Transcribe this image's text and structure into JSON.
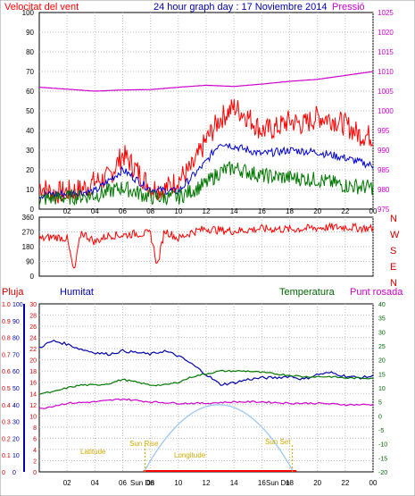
{
  "title": "24 hour graph day : 17 Noviembre 2014",
  "colors": {
    "wind": "#ff0000",
    "gust": "#ff0000",
    "pressure": "#cc00cc",
    "avg": "#0000cc",
    "temp": "#007700",
    "humidity": "#0000aa",
    "rain": "#ff0000",
    "dew": "#cc00cc",
    "sun": "#a0c8f0",
    "sunmarker": "#ccaa00"
  },
  "top_panel": {
    "left_label": "Velocitat del vent",
    "right_label": "Pressió",
    "left_ticks": [
      "100",
      "90",
      "80",
      "70",
      "60",
      "50",
      "40",
      "30",
      "20",
      "10",
      "0"
    ],
    "right_ticks": [
      "1025",
      "1020",
      "1015",
      "1010",
      "1005",
      "1000",
      "995",
      "990",
      "985",
      "980",
      "975"
    ],
    "x_ticks": [
      "02",
      "04",
      "06",
      "08",
      "10",
      "12",
      "14",
      "16",
      "18",
      "20",
      "22",
      "00"
    ]
  },
  "dir_panel": {
    "left_ticks": [
      "360",
      "270",
      "180",
      "90",
      "0"
    ],
    "compass": [
      "N",
      "W",
      "S",
      "E",
      "N"
    ]
  },
  "bottom_panel": {
    "labels": {
      "rain": "Pluja",
      "humidity": "Humitat",
      "temp": "Temperatura",
      "dew": "Punt rosada"
    },
    "rain_ticks": [
      "1.0",
      "0.9",
      "0.8",
      "0.7",
      "0.6",
      "0.5",
      "0.4",
      "0.3",
      "0.2",
      "0.1",
      "0"
    ],
    "hum_ticks": [
      "100",
      "90",
      "80",
      "70",
      "60",
      "50",
      "40",
      "30",
      "20",
      "10",
      "0"
    ],
    "mid_ticks": [
      "30",
      "28",
      "26",
      "24",
      "22",
      "20",
      "18",
      "16",
      "14",
      "12",
      "10",
      "8",
      "6",
      "4",
      "2",
      "0"
    ],
    "temp_ticks": [
      "40",
      "35",
      "30",
      "25",
      "20",
      "15",
      "10",
      "5",
      "0",
      "-5",
      "-10",
      "-15",
      "-20"
    ],
    "x_ticks": [
      "02",
      "04",
      "06",
      "08",
      "10",
      "12",
      "14",
      "16",
      "18",
      "20",
      "22",
      "00"
    ],
    "sun_labels": {
      "sunrise": "Sun Rise",
      "sunset": "Sun Set",
      "sundown_left": "Sun Dn",
      "sundown_right": "Sun Dn",
      "sunrise_low": "Sun Dn",
      "latitude": "Latitude",
      "longitude": "Longitude"
    }
  },
  "chart_data": [
    {
      "type": "line",
      "title": "24 hour graph day : 17 Noviembre 2014",
      "x_unit": "hour",
      "series": [
        {
          "name": "Velocitat del vent",
          "axis": "left",
          "x": [
            0,
            1,
            2,
            3,
            4,
            5,
            6,
            7,
            8,
            9,
            10,
            11,
            12,
            13,
            14,
            15,
            16,
            17,
            18,
            19,
            20,
            21,
            22,
            23,
            24
          ],
          "values": [
            12,
            8,
            9,
            10,
            14,
            16,
            28,
            20,
            11,
            10,
            15,
            21,
            35,
            46,
            52,
            47,
            40,
            41,
            45,
            43,
            47,
            46,
            43,
            38,
            37
          ]
        },
        {
          "name": "Pressió",
          "axis": "right",
          "x": [
            0,
            2,
            4,
            6,
            8,
            10,
            12,
            14,
            16,
            18,
            20,
            22,
            24
          ],
          "values": [
            1006,
            1005.5,
            1005,
            1005.3,
            1005.4,
            1006,
            1006.5,
            1006.2,
            1006.8,
            1007.5,
            1008,
            1009,
            1010
          ]
        },
        {
          "name": "",
          "axis": "left",
          "x": [
            0,
            2,
            4,
            6,
            8,
            10,
            12,
            13,
            14,
            16,
            18,
            20,
            22,
            24
          ],
          "values": [
            7,
            8,
            9,
            20,
            10,
            9,
            24,
            34,
            32,
            28,
            30,
            29,
            26,
            22
          ]
        },
        {
          "name": "",
          "axis": "left",
          "x": [
            0,
            2,
            4,
            6,
            8,
            10,
            12,
            13,
            14,
            16,
            18,
            20,
            22,
            24
          ],
          "values": [
            5,
            6,
            7,
            11,
            6,
            6,
            13,
            19,
            21,
            17,
            16,
            15,
            12,
            11
          ]
        }
      ],
      "ylim_left": [
        0,
        100
      ],
      "ylim_right": [
        975,
        1025
      ]
    },
    {
      "type": "line",
      "x": [
        0,
        1,
        2,
        2.5,
        3,
        4,
        5,
        6,
        7,
        8,
        8.5,
        9,
        10,
        11,
        12,
        13,
        14,
        16,
        18,
        20,
        22,
        24
      ],
      "values": [
        225,
        240,
        230,
        20,
        270,
        210,
        250,
        250,
        260,
        260,
        60,
        280,
        230,
        270,
        290,
        280,
        275,
        290,
        285,
        295,
        300,
        290
      ],
      "ylim": [
        0,
        360
      ]
    },
    {
      "type": "line",
      "x_unit": "hour",
      "series": [
        {
          "name": "Humitat",
          "axis": "hum",
          "x": [
            0,
            1,
            2,
            3,
            4,
            5,
            6,
            7,
            8,
            9,
            10,
            11,
            12,
            13,
            14,
            15,
            16,
            17,
            18,
            19,
            20,
            21,
            22,
            23,
            24
          ],
          "values": [
            74,
            78,
            76,
            73,
            71,
            70,
            72,
            71,
            70,
            72,
            69,
            64,
            58,
            52,
            53,
            55,
            56,
            56,
            57,
            55,
            58,
            59,
            57,
            56,
            57
          ]
        },
        {
          "name": "Temperatura",
          "axis": "temp",
          "x": [
            0,
            1,
            2,
            3,
            4,
            5,
            6,
            7,
            8,
            9,
            10,
            11,
            12,
            13,
            14,
            15,
            16,
            17,
            18,
            19,
            20,
            21,
            22,
            23,
            24
          ],
          "values": [
            8,
            8.5,
            10,
            11,
            11,
            11.5,
            13,
            12,
            11,
            11,
            12,
            14,
            15,
            16,
            16,
            16,
            15.5,
            15,
            14.5,
            14,
            14,
            14,
            13.5,
            13.5,
            13.5
          ]
        },
        {
          "name": "Punt rosada",
          "axis": "temp",
          "x": [
            0,
            2,
            4,
            6,
            8,
            10,
            12,
            14,
            16,
            18,
            20,
            22,
            24
          ],
          "values": [
            2.5,
            4.5,
            5,
            6,
            5,
            4.5,
            4.5,
            5,
            5,
            4.5,
            4.5,
            4,
            4
          ]
        },
        {
          "name": "Pluja",
          "axis": "rain",
          "x": [
            0,
            24
          ],
          "values": [
            0,
            0
          ]
        }
      ],
      "ylim_hum": [
        0,
        100
      ],
      "ylim_temp": [
        -20,
        40
      ]
    }
  ]
}
